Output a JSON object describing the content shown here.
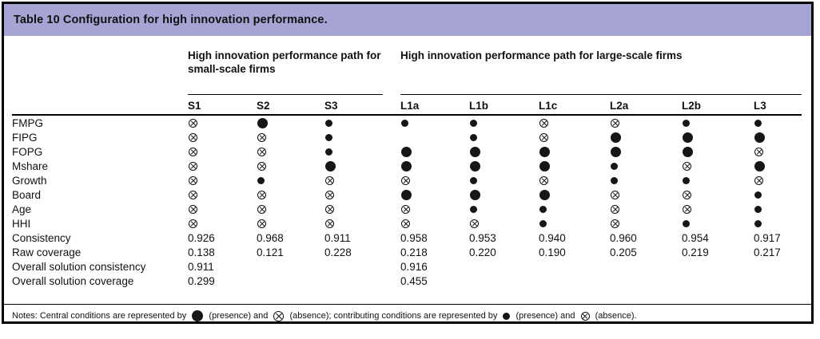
{
  "title": "Table 10 Configuration for high innovation performance.",
  "colors": {
    "header_band": "#a6a4d4",
    "border": "#000000",
    "text": "#111111"
  },
  "table": {
    "group_headers": [
      {
        "label": "High innovation performance path for small-scale firms",
        "span": 3
      },
      {
        "label": "High innovation performance path for large-scale firms",
        "span": 6
      }
    ],
    "columns": [
      "S1",
      "S2",
      "S3",
      "L1a",
      "L1b",
      "L1c",
      "L2a",
      "L2b",
      "L3"
    ],
    "symbol_legend": {
      "P": "central-presence (large filled circle)",
      "A": "central-absence (large circled cross)",
      "p": "contributing-presence (small filled circle)",
      "a": "contributing-absence (small circled cross)",
      "": "blank"
    },
    "symbol_rows": [
      {
        "label": "FMPG",
        "cells": [
          "a",
          "P",
          "p",
          "p",
          "p",
          "a",
          "a",
          "p",
          "p"
        ]
      },
      {
        "label": "FIPG",
        "cells": [
          "a",
          "a",
          "p",
          "",
          "p",
          "a",
          "P",
          "P",
          "P"
        ]
      },
      {
        "label": "FOPG",
        "cells": [
          "a",
          "a",
          "p",
          "P",
          "P",
          "P",
          "P",
          "P",
          "a"
        ]
      },
      {
        "label": "Mshare",
        "cells": [
          "a",
          "a",
          "P",
          "P",
          "P",
          "P",
          "p",
          "a",
          "P"
        ]
      },
      {
        "label": "Growth",
        "cells": [
          "a",
          "p",
          "a",
          "a",
          "p",
          "a",
          "p",
          "p",
          "a"
        ]
      },
      {
        "label": "Board",
        "cells": [
          "a",
          "a",
          "a",
          "P",
          "P",
          "P",
          "a",
          "a",
          "p"
        ]
      },
      {
        "label": "Age",
        "cells": [
          "a",
          "a",
          "a",
          "a",
          "p",
          "p",
          "a",
          "a",
          "p"
        ]
      },
      {
        "label": "HHI",
        "cells": [
          "a",
          "a",
          "a",
          "a",
          "a",
          "p",
          "a",
          "p",
          "p"
        ]
      }
    ],
    "value_rows": [
      {
        "label": "Consistency",
        "cells": [
          "0.926",
          "0.968",
          "0.911",
          "0.958",
          "0.953",
          "0.940",
          "0.960",
          "0.954",
          "0.917"
        ]
      },
      {
        "label": "Raw coverage",
        "cells": [
          "0.138",
          "0.121",
          "0.228",
          "0.218",
          "0.220",
          "0.190",
          "0.205",
          "0.219",
          "0.217"
        ]
      },
      {
        "label": "Overall solution consistency",
        "cells": [
          "0.911",
          "",
          "",
          "0.916",
          "",
          "",
          "",
          "",
          ""
        ]
      },
      {
        "label": "Overall solution coverage",
        "cells": [
          "0.299",
          "",
          "",
          "0.455",
          "",
          "",
          "",
          "",
          ""
        ]
      }
    ]
  },
  "notes": {
    "part1": "Notes: Central conditions are represented by ",
    "part2": " (presence) and ",
    "part3": " (absence); contributing conditions are represented by ",
    "part4": " (presence) and ",
    "part5": " (absence)."
  }
}
